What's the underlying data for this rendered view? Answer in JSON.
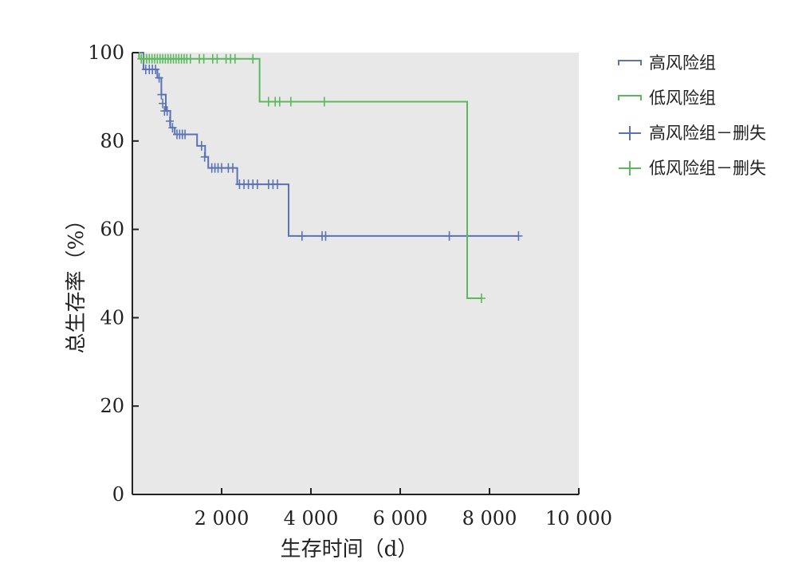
{
  "chart_data": {
    "type": "line",
    "step": true,
    "xlabel": "生存时间（d）",
    "ylabel": "总生存率（%）",
    "xlim": [
      0,
      10000
    ],
    "ylim": [
      0,
      100
    ],
    "x_ticks": [
      2000,
      4000,
      6000,
      8000,
      10000
    ],
    "x_tick_labels": [
      "2 000",
      "4 000",
      "6 000",
      "8 000",
      "10 000"
    ],
    "y_ticks": [
      0,
      20,
      40,
      60,
      80,
      100
    ],
    "y_tick_labels": [
      "0",
      "20",
      "40",
      "60",
      "80",
      "100"
    ],
    "grid": false,
    "background": "#e8e8e8",
    "legend_position": "top-right",
    "series": [
      {
        "name": "高风险组",
        "color": "#5b73b5",
        "x": [
          0,
          250,
          560,
          650,
          750,
          850,
          950,
          1450,
          1630,
          1700,
          2350,
          3500,
          8650
        ],
        "y": [
          100,
          96.2,
          94.3,
          90.5,
          86.8,
          83.0,
          81.5,
          78.9,
          76.4,
          73.9,
          70.2,
          58.5,
          58.5
        ]
      },
      {
        "name": "低风险组",
        "color": "#5cb85c",
        "x": [
          0,
          150,
          2850,
          7500,
          7820
        ],
        "y": [
          100,
          98.6,
          88.9,
          44.4,
          44.4
        ]
      }
    ],
    "censored": [
      {
        "name": "高风险组－删失",
        "color": "#5b73b5",
        "x": [
          300,
          380,
          450,
          520,
          600,
          650,
          680,
          720,
          780,
          840,
          900,
          1000,
          1060,
          1120,
          1180,
          1550,
          1620,
          1780,
          1850,
          1920,
          2000,
          2150,
          2250,
          2400,
          2500,
          2600,
          2700,
          2800,
          3050,
          3150,
          3250,
          3800,
          4250,
          4330,
          7100,
          8650
        ],
        "y": [
          96.2,
          96.2,
          96.2,
          96.2,
          94.3,
          90.5,
          88.5,
          86.8,
          86.8,
          84.5,
          83.0,
          81.5,
          81.5,
          81.5,
          81.5,
          78.9,
          76.4,
          73.9,
          73.9,
          73.9,
          73.9,
          73.9,
          73.9,
          70.2,
          70.2,
          70.2,
          70.2,
          70.2,
          70.2,
          70.2,
          70.2,
          58.5,
          58.5,
          58.5,
          58.5,
          58.5
        ]
      },
      {
        "name": "低风险组－删失",
        "color": "#5cb85c",
        "x": [
          200,
          260,
          320,
          380,
          440,
          500,
          560,
          620,
          680,
          740,
          800,
          860,
          920,
          980,
          1040,
          1100,
          1160,
          1220,
          1300,
          1500,
          1600,
          1800,
          1900,
          2100,
          2200,
          2300,
          2700,
          3050,
          3200,
          3300,
          3550,
          4300,
          7820
        ],
        "y": [
          98.6,
          98.6,
          98.6,
          98.6,
          98.6,
          98.6,
          98.6,
          98.6,
          98.6,
          98.6,
          98.6,
          98.6,
          98.6,
          98.6,
          98.6,
          98.6,
          98.6,
          98.6,
          98.6,
          98.6,
          98.6,
          98.6,
          98.6,
          98.6,
          98.6,
          98.6,
          98.6,
          88.9,
          88.9,
          88.9,
          88.9,
          88.9,
          44.4
        ]
      }
    ],
    "legend": [
      {
        "label": "高风险组",
        "marker": "step",
        "color": "#5b73b5"
      },
      {
        "label": "低风险组",
        "marker": "step",
        "color": "#5cb85c"
      },
      {
        "label": "高风险组－删失",
        "marker": "plus",
        "color": "#5b73b5"
      },
      {
        "label": "低风险组－删失",
        "marker": "plus",
        "color": "#5cb85c"
      }
    ]
  }
}
